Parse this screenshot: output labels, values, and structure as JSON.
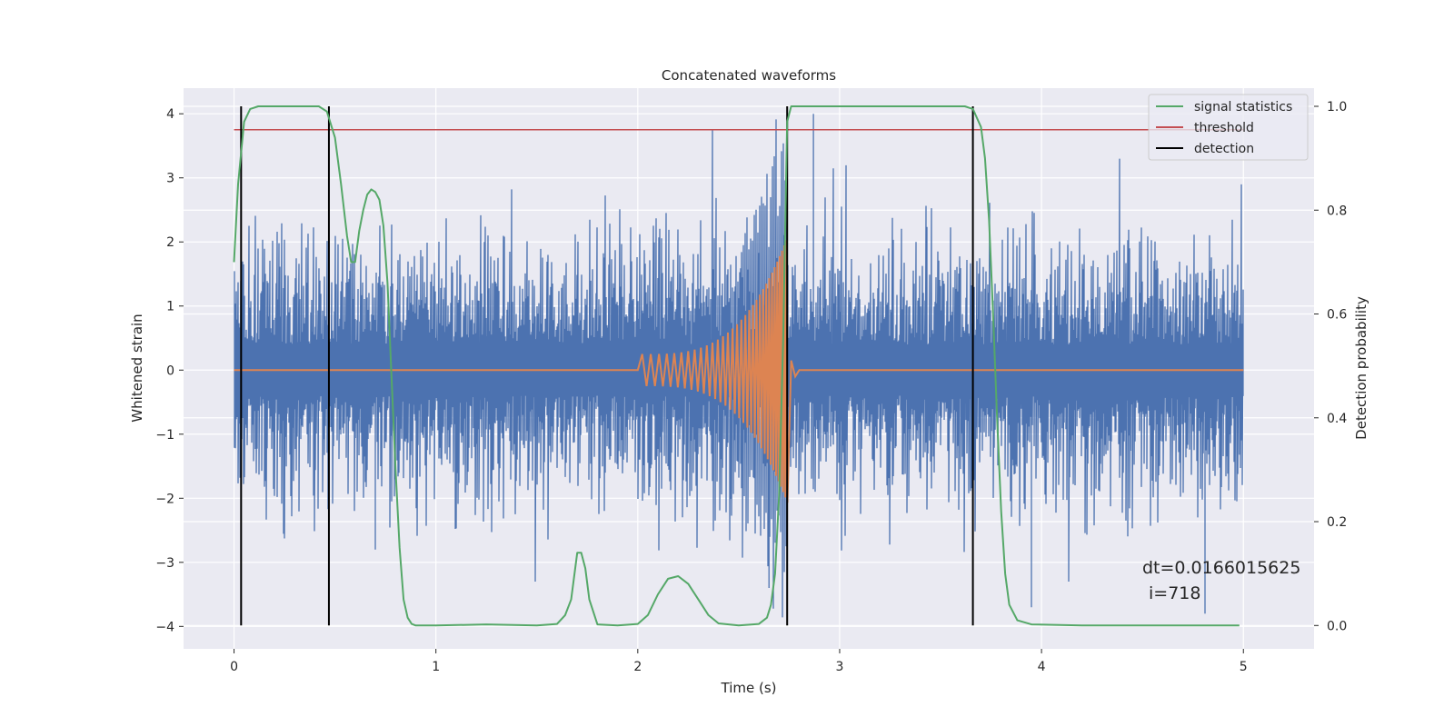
{
  "chart_data": {
    "type": "line",
    "title": "Concatenated waveforms",
    "xlabel": "Time (s)",
    "ylabel": "Whitened strain",
    "y2label": "Detection probability",
    "xlim": [
      -0.25,
      5.35
    ],
    "ylim": [
      -4.35,
      4.4
    ],
    "y2lim": [
      -0.045,
      1.035
    ],
    "xticks": [
      0,
      1,
      2,
      3,
      4,
      5
    ],
    "yticks": [
      -4,
      -3,
      -2,
      -1,
      0,
      1,
      2,
      3,
      4
    ],
    "y2ticks": [
      0.0,
      0.2,
      0.4,
      0.6,
      0.8,
      1.0
    ],
    "y2tick_labels": [
      "0.0",
      "0.2",
      "0.4",
      "0.6",
      "0.8",
      "1.0"
    ],
    "grid": true,
    "legend_position": "top-right",
    "legend": [
      {
        "name": "signal statistics",
        "color": "#55a868"
      },
      {
        "name": "threshold",
        "color": "#c44e52"
      },
      {
        "name": "detection",
        "color": "#000000"
      }
    ],
    "series": [
      {
        "axis": "left",
        "color": "#4c72b0",
        "kind": "whitened strain noise",
        "x_range": [
          0,
          5
        ],
        "approx_amplitude": 1.5,
        "max_peaks": 4
      },
      {
        "axis": "left",
        "color": "#dd8452",
        "kind": "injected chirp",
        "start": 2.0,
        "merger": 2.74,
        "start_amplitude": 0.25,
        "peak_amplitude": 2.1
      },
      {
        "axis": "right",
        "color": "#55a868",
        "name": "signal statistics",
        "x": [
          0.0,
          0.02,
          0.05,
          0.08,
          0.12,
          0.2,
          0.3,
          0.42,
          0.46,
          0.5,
          0.53,
          0.56,
          0.58,
          0.6,
          0.62,
          0.64,
          0.66,
          0.68,
          0.7,
          0.72,
          0.74,
          0.76,
          0.78,
          0.8,
          0.82,
          0.84,
          0.86,
          0.88,
          0.9,
          1.0,
          1.25,
          1.5,
          1.6,
          1.64,
          1.67,
          1.7,
          1.72,
          1.74,
          1.76,
          1.8,
          1.9,
          2.0,
          2.05,
          2.1,
          2.15,
          2.2,
          2.25,
          2.3,
          2.35,
          2.4,
          2.5,
          2.6,
          2.64,
          2.66,
          2.68,
          2.7,
          2.72,
          2.74,
          2.76,
          2.8,
          3.0,
          3.5,
          3.62,
          3.66,
          3.7,
          3.72,
          3.74,
          3.76,
          3.78,
          3.8,
          3.82,
          3.84,
          3.88,
          3.95,
          4.2,
          4.98
        ],
        "y": [
          0.7,
          0.85,
          0.97,
          0.995,
          1.0,
          1.0,
          1.0,
          1.0,
          0.99,
          0.94,
          0.85,
          0.75,
          0.7,
          0.7,
          0.76,
          0.8,
          0.83,
          0.84,
          0.835,
          0.82,
          0.77,
          0.66,
          0.48,
          0.3,
          0.15,
          0.05,
          0.015,
          0.003,
          0.0,
          0.0,
          0.002,
          0.0,
          0.003,
          0.02,
          0.05,
          0.14,
          0.14,
          0.11,
          0.05,
          0.002,
          0.0,
          0.003,
          0.02,
          0.06,
          0.09,
          0.095,
          0.08,
          0.05,
          0.02,
          0.004,
          0.0,
          0.003,
          0.015,
          0.04,
          0.1,
          0.25,
          0.55,
          0.97,
          1.0,
          1.0,
          1.0,
          1.0,
          1.0,
          0.995,
          0.96,
          0.9,
          0.78,
          0.6,
          0.4,
          0.22,
          0.1,
          0.04,
          0.01,
          0.002,
          0.0,
          0.0
        ]
      },
      {
        "axis": "right",
        "color": "#c44e52",
        "name": "threshold",
        "x": [
          0.0,
          5.0
        ],
        "y": [
          0.955,
          0.955
        ]
      },
      {
        "axis": "right",
        "color": "#000000",
        "name": "detection",
        "x": [
          0.035,
          0.47,
          2.74,
          3.66
        ],
        "y_range": [
          0.0,
          1.0
        ]
      }
    ],
    "annotations": [
      "dt=0.0166015625",
      "i=718"
    ]
  }
}
